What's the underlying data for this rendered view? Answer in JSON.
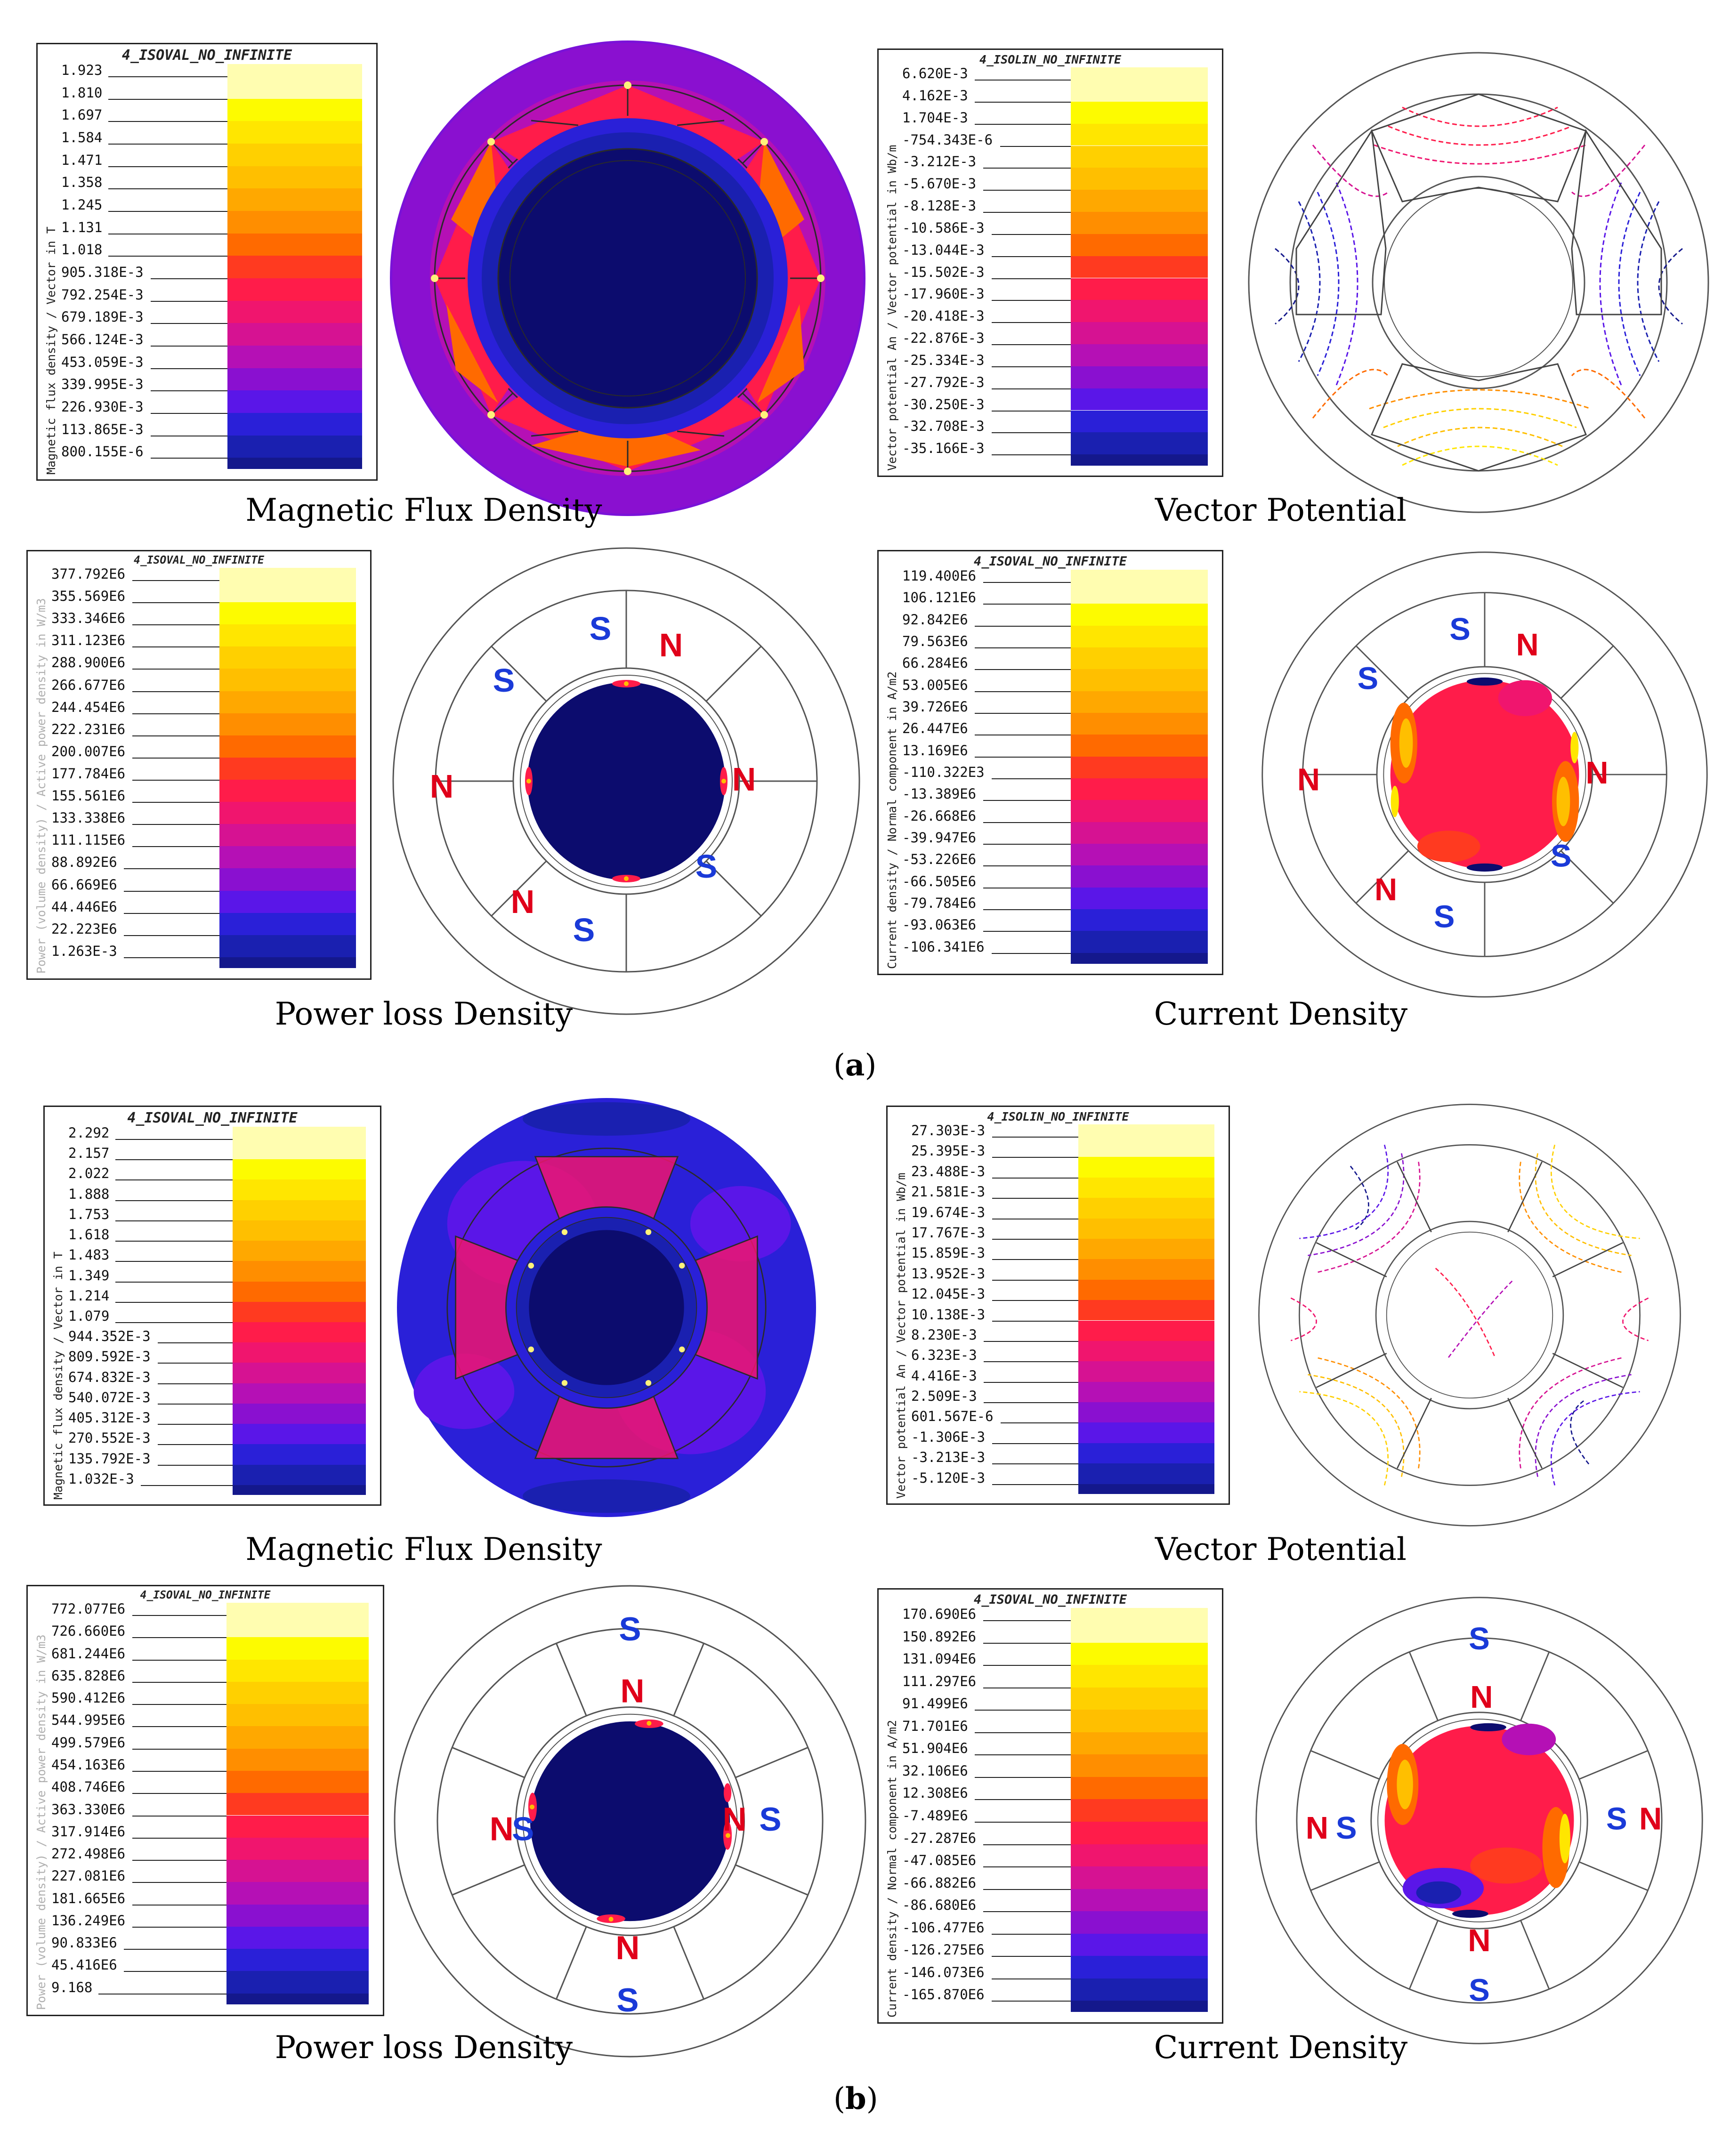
{
  "colors": {
    "scale": [
      "#fffdb0",
      "#fdfb00",
      "#ffe600",
      "#ffd000",
      "#ffbf00",
      "#ffa800",
      "#ff8e00",
      "#ff6a00",
      "#ff3a20",
      "#ff1c4a",
      "#f0156e",
      "#d61292",
      "#b510b5",
      "#8a10d0",
      "#5a16e8",
      "#2a20d8",
      "#1a20b0",
      "#14188c",
      "#0c0c6e"
    ],
    "pole_n": "#e0001a",
    "pole_s": "#1a3ad8",
    "dark_blue": "#0c0c6e",
    "magenta": "#ff1c4a"
  },
  "section_a": {
    "label": "(a)",
    "label_letter": "a",
    "flux": {
      "title": "4_ISOVAL_NO_INFINITE",
      "vlabel": "Magnetic flux density / Vector in T",
      "values": [
        "1.923",
        "1.810",
        "1.697",
        "1.584",
        "1.471",
        "1.358",
        "1.245",
        "1.131",
        "1.018",
        "905.318E-3",
        "792.254E-3",
        "679.189E-3",
        "566.124E-3",
        "453.059E-3",
        "339.995E-3",
        "226.930E-3",
        "113.865E-3",
        "800.155E-6"
      ],
      "caption": "Magnetic Flux Density"
    },
    "vector": {
      "title": "4_ISOLIN_NO_INFINITE",
      "vlabel": "Vector potential An / Vector potential in Wb/m",
      "values": [
        "6.620E-3",
        "4.162E-3",
        "1.704E-3",
        "-754.343E-6",
        "-3.212E-3",
        "-5.670E-3",
        "-8.128E-3",
        "-10.586E-3",
        "-13.044E-3",
        "-15.502E-3",
        "-17.960E-3",
        "-20.418E-3",
        "-22.876E-3",
        "-25.334E-3",
        "-27.792E-3",
        "-30.250E-3",
        "-32.708E-3",
        "-35.166E-3"
      ],
      "caption": "Vector Potential"
    },
    "power": {
      "title": "4_ISOVAL_NO_INFINITE",
      "vlabel": "Power (volume density) / Active power density in W/m3",
      "values": [
        "377.792E6",
        "355.569E6",
        "333.346E6",
        "311.123E6",
        "288.900E6",
        "266.677E6",
        "244.454E6",
        "222.231E6",
        "200.007E6",
        "177.784E6",
        "155.561E6",
        "133.338E6",
        "111.115E6",
        "88.892E6",
        "66.669E6",
        "44.446E6",
        "22.223E6",
        "1.263E-3"
      ],
      "caption": "Power loss Density",
      "poles": [
        "S",
        "N",
        "S",
        "N",
        "N",
        "S",
        "N",
        "S"
      ]
    },
    "current": {
      "title": "4_ISOVAL_NO_INFINITE",
      "vlabel": "Current density / Normal component in A/m2",
      "values": [
        "119.400E6",
        "106.121E6",
        "92.842E6",
        "79.563E6",
        "66.284E6",
        "53.005E6",
        "39.726E6",
        "26.447E6",
        "13.169E6",
        "-110.322E3",
        "-13.389E6",
        "-26.668E6",
        "-39.947E6",
        "-53.226E6",
        "-66.505E6",
        "-79.784E6",
        "-93.063E6",
        "-106.341E6"
      ],
      "caption": "Current Density",
      "poles": [
        "S",
        "N",
        "S",
        "N",
        "N",
        "S",
        "N",
        "S"
      ]
    }
  },
  "section_b": {
    "label": "(b)",
    "label_letter": "b",
    "flux": {
      "title": "4_ISOVAL_NO_INFINITE",
      "vlabel": "Magnetic flux density / Vector in T",
      "values": [
        "2.292",
        "2.157",
        "2.022",
        "1.888",
        "1.753",
        "1.618",
        "1.483",
        "1.349",
        "1.214",
        "1.079",
        "944.352E-3",
        "809.592E-3",
        "674.832E-3",
        "540.072E-3",
        "405.312E-3",
        "270.552E-3",
        "135.792E-3",
        "1.032E-3"
      ],
      "caption": "Magnetic Flux Density"
    },
    "vector": {
      "title": "4_ISOLIN_NO_INFINITE",
      "vlabel": "Vector potential An / Vector potential in Wb/m",
      "values": [
        "27.303E-3",
        "25.395E-3",
        "23.488E-3",
        "21.581E-3",
        "19.674E-3",
        "17.767E-3",
        "15.859E-3",
        "13.952E-3",
        "12.045E-3",
        "10.138E-3",
        "8.230E-3",
        "6.323E-3",
        "4.416E-3",
        "2.509E-3",
        "601.567E-6",
        "-1.306E-3",
        "-3.213E-3",
        "-5.120E-3"
      ],
      "caption": "Vector Potential"
    },
    "power": {
      "title": "4_ISOVAL_NO_INFINITE",
      "vlabel": "Power (volume density) / Active power density in W/m3",
      "values": [
        "772.077E6",
        "726.660E6",
        "681.244E6",
        "635.828E6",
        "590.412E6",
        "544.995E6",
        "499.579E6",
        "454.163E6",
        "408.746E6",
        "363.330E6",
        "317.914E6",
        "272.498E6",
        "227.081E6",
        "181.665E6",
        "136.249E6",
        "90.833E6",
        "45.416E6",
        "9.168"
      ],
      "caption": "Power loss Density",
      "poles": [
        "S",
        "N",
        "S",
        "N",
        "N",
        "S",
        "N",
        "S"
      ]
    },
    "current": {
      "title": "4_ISOVAL_NO_INFINITE",
      "vlabel": "Current density / Normal component in A/m2",
      "values": [
        "170.690E6",
        "150.892E6",
        "131.094E6",
        "111.297E6",
        "91.499E6",
        "71.701E6",
        "51.904E6",
        "32.106E6",
        "12.308E6",
        "-7.489E6",
        "-27.287E6",
        "-47.085E6",
        "-66.882E6",
        "-86.680E6",
        "-106.477E6",
        "-126.275E6",
        "-146.073E6",
        "-165.870E6"
      ],
      "caption": "Current Density",
      "poles": [
        "S",
        "N",
        "S",
        "N",
        "N",
        "S",
        "N",
        "S"
      ]
    }
  }
}
